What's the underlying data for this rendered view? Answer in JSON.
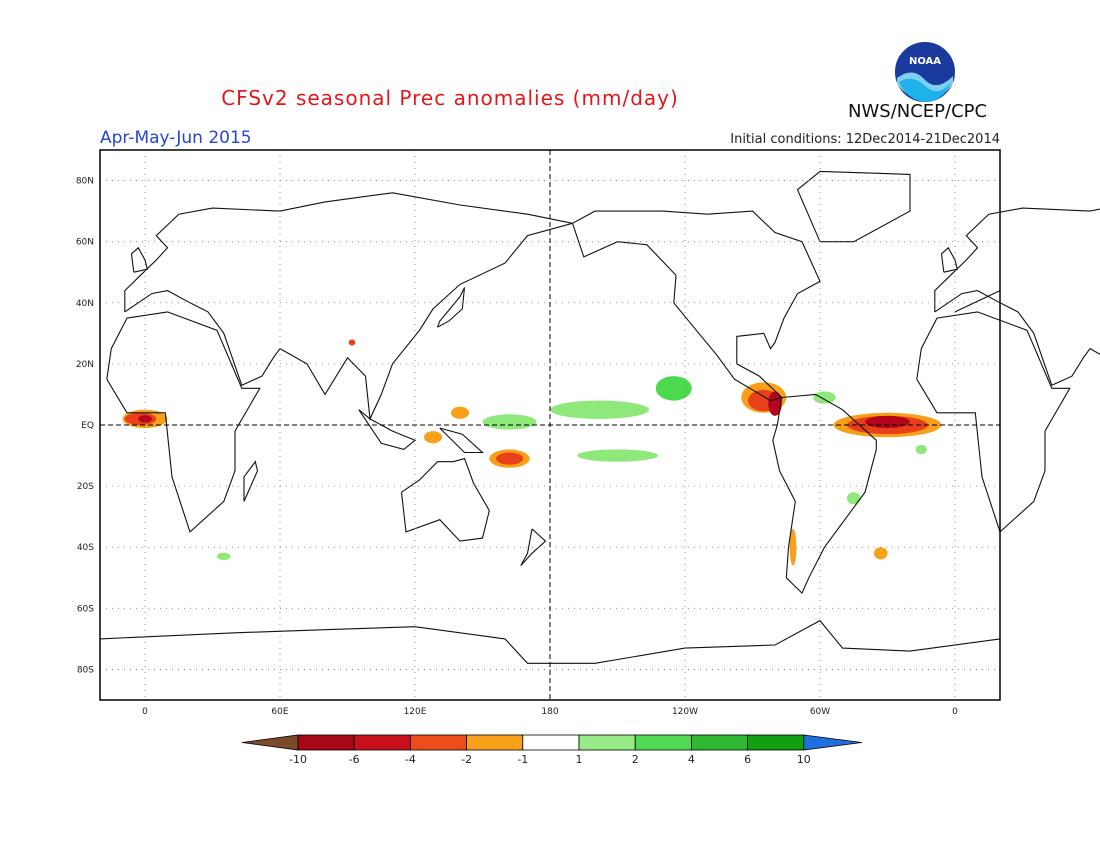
{
  "header": {
    "title": "CFSv2 seasonal Prec anomalies (mm/day)",
    "agency": "NWS/NCEP/CPC",
    "logo_text": "NOAA",
    "season": "Apr-May-Jun 2015",
    "initial_conditions": "Initial conditions: 12Dec2014-21Dec2014"
  },
  "map": {
    "lat_ticks": [
      {
        "label": "80N",
        "lat": 80
      },
      {
        "label": "60N",
        "lat": 60
      },
      {
        "label": "40N",
        "lat": 40
      },
      {
        "label": "20N",
        "lat": 20
      },
      {
        "label": "EQ",
        "lat": 0
      },
      {
        "label": "20S",
        "lat": -20
      },
      {
        "label": "40S",
        "lat": -40
      },
      {
        "label": "60S",
        "lat": -60
      },
      {
        "label": "80S",
        "lat": -80
      }
    ],
    "lon_ticks": [
      {
        "label": "0",
        "lon": 0
      },
      {
        "label": "60E",
        "lon": 60
      },
      {
        "label": "120E",
        "lon": 120
      },
      {
        "label": "180",
        "lon": 180
      },
      {
        "label": "120W",
        "lon": 240
      },
      {
        "label": "60W",
        "lon": 300
      },
      {
        "label": "0",
        "lon": 360
      }
    ],
    "anomalies": [
      {
        "lon": 0,
        "lat": 2,
        "rx": 10,
        "ry": 3,
        "color": "#f9a01b"
      },
      {
        "lon": -2,
        "lat": 2,
        "rx": 7,
        "ry": 2,
        "color": "#e8401b"
      },
      {
        "lon": 0,
        "lat": 2,
        "rx": 3,
        "ry": 1.2,
        "color": "#b5051d"
      },
      {
        "lon": 330,
        "lat": 0,
        "rx": 24,
        "ry": 4,
        "color": "#f9a01b"
      },
      {
        "lon": 330,
        "lat": 0,
        "rx": 18,
        "ry": 3,
        "color": "#e8401b"
      },
      {
        "lon": 330,
        "lat": 1,
        "rx": 10,
        "ry": 2,
        "color": "#b5051d"
      },
      {
        "lon": 275,
        "lat": 9,
        "rx": 10,
        "ry": 5,
        "color": "#f9a01b"
      },
      {
        "lon": 275,
        "lat": 8,
        "rx": 7,
        "ry": 3.5,
        "color": "#e8401b"
      },
      {
        "lon": 280,
        "lat": 7,
        "rx": 3,
        "ry": 4,
        "color": "#b5051d"
      },
      {
        "lon": 162,
        "lat": -11,
        "rx": 9,
        "ry": 3,
        "color": "#f9a01b"
      },
      {
        "lon": 162,
        "lat": -11,
        "rx": 6,
        "ry": 2,
        "color": "#e8401b"
      },
      {
        "lon": 140,
        "lat": 4,
        "rx": 4,
        "ry": 2,
        "color": "#f9a01b"
      },
      {
        "lon": 128,
        "lat": -4,
        "rx": 4,
        "ry": 2,
        "color": "#f9a01b"
      },
      {
        "lon": 92,
        "lat": 27,
        "rx": 1.5,
        "ry": 1,
        "color": "#e8401b"
      },
      {
        "lon": 327,
        "lat": -42,
        "rx": 3,
        "ry": 2,
        "color": "#f9a01b"
      },
      {
        "lon": 288,
        "lat": -40,
        "rx": 1.5,
        "ry": 6,
        "color": "#f9a01b"
      },
      {
        "lon": 202,
        "lat": 5,
        "rx": 22,
        "ry": 3,
        "color": "#8ee87a"
      },
      {
        "lon": 235,
        "lat": 12,
        "rx": 8,
        "ry": 4,
        "color": "#4cd94c"
      },
      {
        "lon": 210,
        "lat": -10,
        "rx": 18,
        "ry": 2,
        "color": "#8ee87a"
      },
      {
        "lon": 162,
        "lat": 1,
        "rx": 12,
        "ry": 2.5,
        "color": "#8ee87a"
      },
      {
        "lon": 302,
        "lat": 9,
        "rx": 5,
        "ry": 2,
        "color": "#8ee87a"
      },
      {
        "lon": 315,
        "lat": -24,
        "rx": 3,
        "ry": 2,
        "color": "#8ee87a"
      },
      {
        "lon": 35,
        "lat": -43,
        "rx": 3,
        "ry": 1.2,
        "color": "#8ee87a"
      },
      {
        "lon": 345,
        "lat": -8,
        "rx": 2.5,
        "ry": 1.5,
        "color": "#8ee87a"
      }
    ]
  },
  "colorbar": {
    "labels": [
      "-10",
      "-6",
      "-4",
      "-2",
      "-1",
      "1",
      "2",
      "4",
      "6",
      "10"
    ],
    "colors": [
      "#7a4a2a",
      "#a8071a",
      "#c8101d",
      "#ef4c1b",
      "#f9a01b",
      "#ffffff",
      "#98eb86",
      "#52d952",
      "#2fb82f",
      "#12a012",
      "#1f6fe0"
    ]
  }
}
